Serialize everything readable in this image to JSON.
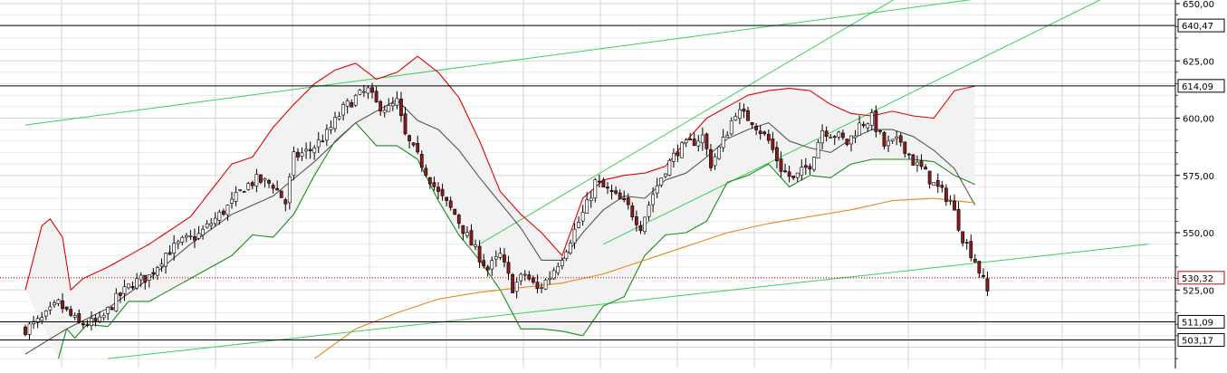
{
  "chart_data": {
    "type": "candlestick",
    "title": "",
    "xlabel": "",
    "ylabel": "",
    "ylim": [
      495,
      650
    ],
    "grid": true,
    "y_ticks": [
      "650,00",
      "625,00",
      "600,00",
      "575,00",
      "550,00",
      "525,00"
    ],
    "y_tick_values": [
      650,
      625,
      600,
      575,
      550,
      525
    ],
    "horizontal_levels": [
      {
        "label": "640,47",
        "value": 640.47,
        "style": "solid"
      },
      {
        "label": "614,09",
        "value": 614.09,
        "style": "solid"
      },
      {
        "label": "530,32",
        "value": 530.32,
        "style": "dotted-red"
      },
      {
        "label": "511,09",
        "value": 511.09,
        "style": "solid"
      },
      {
        "label": "503,17",
        "value": 503.17,
        "style": "solid"
      }
    ],
    "close_series_key": [
      [
        0,
        508
      ],
      [
        4,
        512
      ],
      [
        8,
        519
      ],
      [
        13,
        510
      ],
      [
        18,
        511
      ],
      [
        22,
        521
      ],
      [
        26,
        528
      ],
      [
        30,
        531
      ],
      [
        34,
        541
      ],
      [
        38,
        546
      ],
      [
        42,
        549
      ],
      [
        46,
        556
      ],
      [
        50,
        563
      ],
      [
        53,
        570
      ],
      [
        56,
        573
      ],
      [
        60,
        571
      ],
      [
        63,
        563
      ],
      [
        65,
        583
      ],
      [
        69,
        586
      ],
      [
        73,
        593
      ],
      [
        77,
        604
      ],
      [
        80,
        609
      ],
      [
        83,
        612
      ],
      [
        85,
        606
      ],
      [
        88,
        604
      ],
      [
        90,
        607
      ],
      [
        92,
        592
      ],
      [
        96,
        580
      ],
      [
        100,
        567
      ],
      [
        104,
        558
      ],
      [
        108,
        545
      ],
      [
        112,
        534
      ],
      [
        115,
        540
      ],
      [
        118,
        526
      ],
      [
        121,
        532
      ],
      [
        124,
        525
      ],
      [
        127,
        531
      ],
      [
        130,
        540
      ],
      [
        133,
        551
      ],
      [
        136,
        562
      ],
      [
        138,
        572
      ],
      [
        142,
        567
      ],
      [
        146,
        561
      ],
      [
        149,
        553
      ],
      [
        152,
        567
      ],
      [
        155,
        578
      ],
      [
        158,
        586
      ],
      [
        161,
        589
      ],
      [
        164,
        592
      ],
      [
        166,
        580
      ],
      [
        169,
        590
      ],
      [
        172,
        603
      ],
      [
        176,
        599
      ],
      [
        180,
        590
      ],
      [
        183,
        578
      ],
      [
        186,
        573
      ],
      [
        190,
        580
      ],
      [
        193,
        595
      ],
      [
        197,
        592
      ],
      [
        199,
        589
      ],
      [
        202,
        597
      ],
      [
        205,
        600
      ],
      [
        208,
        588
      ],
      [
        212,
        590
      ],
      [
        215,
        581
      ],
      [
        217,
        578
      ],
      [
        220,
        571
      ],
      [
        224,
        564
      ],
      [
        227,
        548
      ],
      [
        230,
        538
      ],
      [
        233,
        524
      ]
    ],
    "moving_avg_short_key": [
      [
        0,
        497
      ],
      [
        10,
        508
      ],
      [
        20,
        517
      ],
      [
        30,
        530
      ],
      [
        40,
        545
      ],
      [
        50,
        558
      ],
      [
        60,
        566
      ],
      [
        70,
        581
      ],
      [
        80,
        598
      ],
      [
        90,
        608
      ],
      [
        95,
        599
      ],
      [
        100,
        595
      ],
      [
        105,
        586
      ],
      [
        110,
        574
      ],
      [
        115,
        563
      ],
      [
        120,
        552
      ],
      [
        125,
        538
      ],
      [
        130,
        538
      ],
      [
        135,
        550
      ],
      [
        140,
        560
      ],
      [
        145,
        566
      ],
      [
        150,
        565
      ],
      [
        155,
        573
      ],
      [
        160,
        576
      ],
      [
        165,
        583
      ],
      [
        170,
        591
      ],
      [
        175,
        595
      ],
      [
        180,
        598
      ],
      [
        185,
        590
      ],
      [
        190,
        587
      ],
      [
        195,
        585
      ],
      [
        200,
        591
      ],
      [
        205,
        595
      ],
      [
        210,
        595
      ],
      [
        215,
        592
      ],
      [
        220,
        586
      ],
      [
        225,
        578
      ],
      [
        230,
        562
      ]
    ],
    "bollinger_upper_key": [
      [
        0,
        525
      ],
      [
        4,
        553
      ],
      [
        6,
        556
      ],
      [
        9,
        548
      ],
      [
        11,
        525
      ],
      [
        14,
        530
      ],
      [
        20,
        535
      ],
      [
        30,
        545
      ],
      [
        40,
        557
      ],
      [
        50,
        580
      ],
      [
        55,
        583
      ],
      [
        60,
        596
      ],
      [
        65,
        606
      ],
      [
        70,
        615
      ],
      [
        75,
        621
      ],
      [
        80,
        624
      ],
      [
        85,
        617
      ],
      [
        90,
        620
      ],
      [
        95,
        627
      ],
      [
        100,
        620
      ],
      [
        105,
        609
      ],
      [
        110,
        590
      ],
      [
        115,
        568
      ],
      [
        120,
        558
      ],
      [
        125,
        550
      ],
      [
        130,
        540
      ],
      [
        135,
        565
      ],
      [
        140,
        573
      ],
      [
        145,
        575
      ],
      [
        150,
        576
      ],
      [
        155,
        579
      ],
      [
        160,
        590
      ],
      [
        165,
        600
      ],
      [
        170,
        605
      ],
      [
        175,
        610
      ],
      [
        180,
        612
      ],
      [
        185,
        613
      ],
      [
        190,
        612
      ],
      [
        195,
        606
      ],
      [
        200,
        602
      ],
      [
        205,
        601
      ],
      [
        210,
        603
      ],
      [
        215,
        601
      ],
      [
        220,
        600
      ],
      [
        225,
        612
      ],
      [
        230,
        614
      ]
    ],
    "bollinger_lower_key": [
      [
        8,
        495
      ],
      [
        10,
        508
      ],
      [
        12,
        504
      ],
      [
        15,
        510
      ],
      [
        20,
        509
      ],
      [
        25,
        520
      ],
      [
        30,
        520
      ],
      [
        40,
        530
      ],
      [
        50,
        540
      ],
      [
        55,
        549
      ],
      [
        60,
        548
      ],
      [
        65,
        558
      ],
      [
        70,
        575
      ],
      [
        75,
        590
      ],
      [
        80,
        598
      ],
      [
        85,
        588
      ],
      [
        90,
        588
      ],
      [
        95,
        582
      ],
      [
        100,
        564
      ],
      [
        105,
        549
      ],
      [
        110,
        538
      ],
      [
        115,
        525
      ],
      [
        120,
        508
      ],
      [
        125,
        508
      ],
      [
        130,
        507
      ],
      [
        135,
        505
      ],
      [
        140,
        518
      ],
      [
        145,
        522
      ],
      [
        150,
        540
      ],
      [
        155,
        549
      ],
      [
        160,
        550
      ],
      [
        165,
        555
      ],
      [
        170,
        572
      ],
      [
        175,
        575
      ],
      [
        180,
        580
      ],
      [
        185,
        570
      ],
      [
        190,
        575
      ],
      [
        195,
        574
      ],
      [
        200,
        580
      ],
      [
        205,
        582
      ],
      [
        210,
        582
      ],
      [
        215,
        582
      ],
      [
        220,
        581
      ],
      [
        225,
        575
      ],
      [
        230,
        571
      ]
    ],
    "moving_avg_long_key": [
      [
        70,
        495
      ],
      [
        80,
        508
      ],
      [
        90,
        515
      ],
      [
        100,
        521
      ],
      [
        110,
        524
      ],
      [
        120,
        526
      ],
      [
        130,
        528
      ],
      [
        140,
        532
      ],
      [
        150,
        538
      ],
      [
        160,
        544
      ],
      [
        170,
        550
      ],
      [
        180,
        554
      ],
      [
        190,
        557
      ],
      [
        200,
        560
      ],
      [
        210,
        564
      ],
      [
        220,
        565
      ],
      [
        230,
        563
      ]
    ],
    "trendlines_green": [
      {
        "p0": [
          0,
          597
        ],
        "p1": [
          272,
          662
        ]
      },
      {
        "p0": [
          20,
          495
        ],
        "p1": [
          272,
          545
        ]
      },
      {
        "p0": [
          110,
          545
        ],
        "p1": [
          220,
          662
        ]
      },
      {
        "p0": [
          140,
          545
        ],
        "p1": [
          272,
          662
        ]
      }
    ]
  },
  "colors": {
    "background": "#ffffff",
    "grid": "#d6d6d6",
    "candle_up": "#ffffff",
    "candle_down": "#8b1a1a",
    "candle_outline": "#000000",
    "band_upper": "#e00000",
    "band_lower": "#1c8a1c",
    "band_fill": "#f2f2f2",
    "moving_avg_short": "#555555",
    "moving_avg_long": "#e08a1a",
    "trendline": "#3bcf5a",
    "level_line": "#000000",
    "level_dotted": "#cc0000"
  }
}
